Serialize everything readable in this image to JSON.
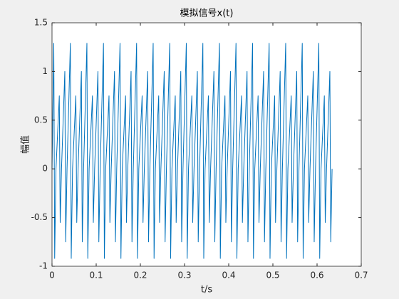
{
  "chart_data": {
    "type": "line",
    "title": "模拟信号x(t)",
    "xlabel": "t/s",
    "ylabel": "幅值",
    "xlim": [
      0,
      0.7
    ],
    "xticks": [
      0,
      0.1,
      0.2,
      0.3,
      0.4,
      0.5,
      0.6,
      0.7
    ],
    "ylim": [
      -1,
      1.5
    ],
    "yticks": [
      -1,
      -0.5,
      0,
      0.5,
      1,
      1.5
    ],
    "grid": false,
    "series": [
      {
        "color": "#0072bd",
        "x": [
          0,
          0.004,
          0.006,
          0.009,
          0.0165,
          0.0185,
          0.0215,
          0.029,
          0.031,
          0.034,
          0.0415,
          0.0435,
          0.0465,
          0.054,
          0.056,
          0.059,
          0.0665,
          0.0685,
          0.0715,
          0.079,
          0.081,
          0.084,
          0.0915,
          0.0935,
          0.0965,
          0.104,
          0.106,
          0.109,
          0.1165,
          0.1185,
          0.1215,
          0.129,
          0.131,
          0.134,
          0.1415,
          0.1435,
          0.1465,
          0.154,
          0.156,
          0.159,
          0.1665,
          0.1685,
          0.1715,
          0.179,
          0.181,
          0.184,
          0.1915,
          0.1935,
          0.1965,
          0.204,
          0.206,
          0.209,
          0.2165,
          0.2185,
          0.2215,
          0.229,
          0.231,
          0.234,
          0.2415,
          0.2435,
          0.2465,
          0.254,
          0.256,
          0.259,
          0.2665,
          0.2685,
          0.2715,
          0.279,
          0.281,
          0.284,
          0.2915,
          0.2935,
          0.2965,
          0.304,
          0.306,
          0.309,
          0.3165,
          0.3185,
          0.3215,
          0.329,
          0.331,
          0.334,
          0.3415,
          0.3435,
          0.3465,
          0.354,
          0.356,
          0.359,
          0.3665,
          0.3685,
          0.3715,
          0.379,
          0.381,
          0.384,
          0.3915,
          0.3935,
          0.3965,
          0.404,
          0.406,
          0.409,
          0.4165,
          0.4185,
          0.4215,
          0.429,
          0.431,
          0.434,
          0.4415,
          0.4435,
          0.4465,
          0.454,
          0.456,
          0.459,
          0.4665,
          0.4685,
          0.4715,
          0.479,
          0.481,
          0.484,
          0.4915,
          0.4935,
          0.4965,
          0.504,
          0.506,
          0.509,
          0.5165,
          0.5185,
          0.5215,
          0.529,
          0.531,
          0.534,
          0.5415,
          0.5435,
          0.5465,
          0.554,
          0.556,
          0.559,
          0.5665,
          0.5685,
          0.5715,
          0.579,
          0.581,
          0.584,
          0.5915,
          0.5935,
          0.5965,
          0.604,
          0.606,
          0.609,
          0.6165,
          0.6185,
          0.6215,
          0.629,
          0.631,
          0.634
        ],
        "values": [
          0,
          1.29,
          -0.92,
          0,
          0.75,
          -0.55,
          0,
          1.0,
          -0.75,
          0,
          1.29,
          -0.92,
          0,
          0.75,
          -0.55,
          0,
          1.0,
          -0.75,
          0,
          1.29,
          -0.92,
          0,
          0.75,
          -0.55,
          0,
          1.0,
          -0.75,
          0,
          1.29,
          -0.92,
          0,
          0.75,
          -0.55,
          0,
          1.0,
          -0.75,
          0,
          1.29,
          -0.92,
          0,
          0.75,
          -0.55,
          0,
          1.0,
          -0.75,
          0,
          1.29,
          -0.92,
          0,
          0.75,
          -0.55,
          0,
          1.0,
          -0.75,
          0,
          1.29,
          -0.92,
          0,
          0.75,
          -0.55,
          0,
          1.0,
          -0.75,
          0,
          1.29,
          -0.92,
          0,
          0.75,
          -0.55,
          0,
          1.0,
          -0.75,
          0,
          1.29,
          -0.92,
          0,
          0.75,
          -0.55,
          0,
          1.0,
          -0.75,
          0,
          1.29,
          -0.92,
          0,
          0.75,
          -0.55,
          0,
          1.0,
          -0.75,
          0,
          1.29,
          -0.92,
          0,
          0.75,
          -0.55,
          0,
          1.0,
          -0.75,
          0,
          1.29,
          -0.92,
          0,
          0.75,
          -0.55,
          0,
          1.0,
          -0.75,
          0,
          1.29,
          -0.92,
          0,
          0.75,
          -0.55,
          0,
          1.0,
          -0.75,
          0,
          1.29,
          -0.92,
          0,
          0.75,
          -0.55,
          0,
          1.0,
          -0.75,
          0,
          1.29,
          -0.92,
          0,
          0.75,
          -0.55,
          0,
          1.0,
          -0.75,
          0,
          1.29,
          -0.92,
          0,
          0.75,
          -0.55,
          0,
          1.0,
          -0.75,
          0,
          1.29,
          -0.92,
          0,
          0.75,
          -0.55,
          0,
          1.0,
          -0.75,
          0
        ]
      }
    ]
  }
}
